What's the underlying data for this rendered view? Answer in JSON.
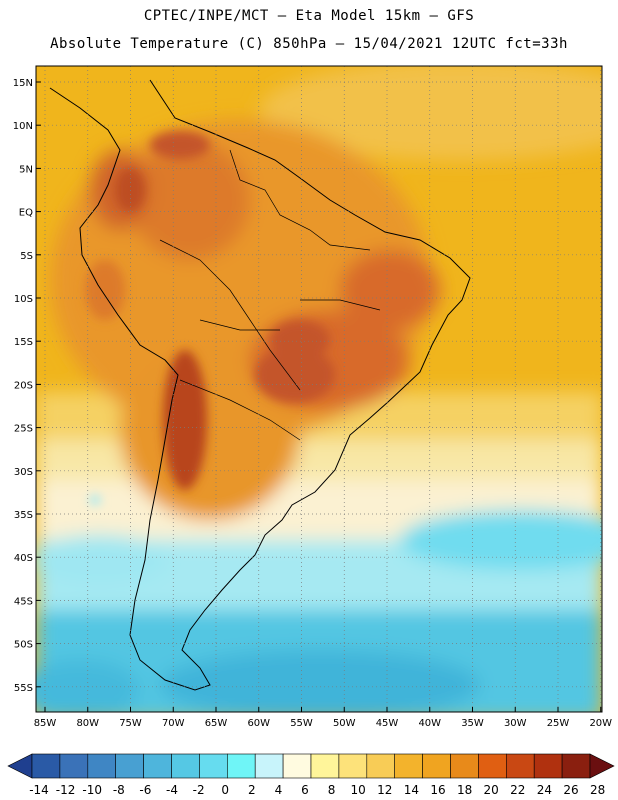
{
  "header": {
    "line1": "CPTEC/INPE/MCT –  Eta Model 15km – GFS",
    "line2": "Absolute Temperature (C) 850hPa – 15/04/2021 12UTC fct=33h"
  },
  "map": {
    "lat_labels": [
      "15N",
      "10N",
      "5N",
      "EQ",
      "5S",
      "10S",
      "15S",
      "20S",
      "25S",
      "30S",
      "35S",
      "40S",
      "45S",
      "50S",
      "55S"
    ],
    "lon_labels": [
      "85W",
      "80W",
      "75W",
      "70W",
      "65W",
      "60W",
      "55W",
      "50W",
      "45W",
      "40W",
      "35W",
      "30W",
      "25W",
      "20W"
    ],
    "field_colors": {
      "cold_ocean": "#45c2e0",
      "cool": "#9eeaf2",
      "mild": "#fbf3d6",
      "warm_light": "#f6d26a",
      "warm": "#f1b320",
      "warm_orange": "#e8962a",
      "hot": "#d86a2a",
      "hottest": "#b8441e"
    }
  },
  "colorbar": {
    "labels": [
      "-14",
      "-12",
      "-10",
      "-8",
      "-6",
      "-4",
      "-2",
      "0",
      "2",
      "4",
      "6",
      "8",
      "10",
      "12",
      "14",
      "16",
      "18",
      "20",
      "22",
      "24",
      "26",
      "28"
    ],
    "colors": [
      "#1f3f8f",
      "#2a5aa6",
      "#3a72b8",
      "#3f86c4",
      "#48a0d2",
      "#4eb5dc",
      "#55c8e4",
      "#66dcef",
      "#6ff5f7",
      "#c8f4fb",
      "#fffbe0",
      "#fff59a",
      "#fde27a",
      "#f8cc56",
      "#f3b32c",
      "#f0a420",
      "#e88a1a",
      "#e05f12",
      "#c94813",
      "#b0310f",
      "#8a1f0f",
      "#6a0f10"
    ]
  }
}
